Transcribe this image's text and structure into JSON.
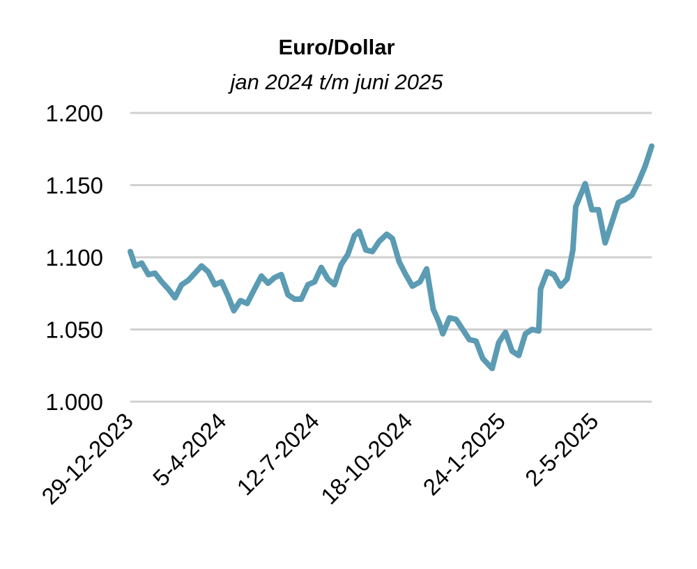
{
  "chart_data": {
    "type": "line",
    "title": "Euro/Dollar",
    "subtitle": "jan 2024 t/m juni 2025",
    "xlabel": "",
    "ylabel": "",
    "ylim": [
      1.0,
      1.2
    ],
    "yticks": [
      1.0,
      1.05,
      1.1,
      1.15,
      1.2
    ],
    "ytick_labels": [
      "1.000",
      "1.050",
      "1.100",
      "1.150",
      "1.200"
    ],
    "xlim": [
      "2023-12-29",
      "2025-06-30"
    ],
    "xticks": [
      "2023-12-29",
      "2024-04-05",
      "2024-07-12",
      "2024-10-18",
      "2025-01-24",
      "2025-05-02"
    ],
    "xtick_labels": [
      "29-12-2023",
      "5-4-2024",
      "12-7-2024",
      "18-10-2024",
      "24-1-2025",
      "2-5-2025"
    ],
    "grid": true,
    "series_color": "#5b9bb3",
    "x": [
      "2023-12-29",
      "2024-01-03",
      "2024-01-10",
      "2024-01-17",
      "2024-01-24",
      "2024-01-31",
      "2024-02-07",
      "2024-02-14",
      "2024-02-21",
      "2024-02-28",
      "2024-03-06",
      "2024-03-13",
      "2024-03-20",
      "2024-03-27",
      "2024-04-03",
      "2024-04-10",
      "2024-04-16",
      "2024-04-23",
      "2024-04-30",
      "2024-05-07",
      "2024-05-15",
      "2024-05-22",
      "2024-05-29",
      "2024-06-05",
      "2024-06-12",
      "2024-06-19",
      "2024-06-26",
      "2024-07-03",
      "2024-07-10",
      "2024-07-17",
      "2024-07-24",
      "2024-07-31",
      "2024-08-07",
      "2024-08-14",
      "2024-08-21",
      "2024-08-26",
      "2024-09-02",
      "2024-09-09",
      "2024-09-16",
      "2024-09-24",
      "2024-09-30",
      "2024-10-07",
      "2024-10-14",
      "2024-10-21",
      "2024-10-29",
      "2024-11-05",
      "2024-11-12",
      "2024-11-18",
      "2024-11-22",
      "2024-11-29",
      "2024-12-06",
      "2024-12-13",
      "2024-12-20",
      "2024-12-27",
      "2025-01-03",
      "2025-01-10",
      "2025-01-13",
      "2025-01-20",
      "2025-01-27",
      "2025-02-03",
      "2025-02-10",
      "2025-02-17",
      "2025-02-24",
      "2025-03-03",
      "2025-03-05",
      "2025-03-12",
      "2025-03-19",
      "2025-03-26",
      "2025-04-02",
      "2025-04-08",
      "2025-04-11",
      "2025-04-21",
      "2025-04-28",
      "2025-05-05",
      "2025-05-12",
      "2025-05-19",
      "2025-05-26",
      "2025-06-02",
      "2025-06-09",
      "2025-06-16",
      "2025-06-23",
      "2025-06-30"
    ],
    "values": [
      1.104,
      1.094,
      1.096,
      1.088,
      1.089,
      1.083,
      1.078,
      1.072,
      1.081,
      1.084,
      1.089,
      1.094,
      1.09,
      1.081,
      1.083,
      1.073,
      1.063,
      1.07,
      1.068,
      1.077,
      1.087,
      1.082,
      1.086,
      1.088,
      1.074,
      1.071,
      1.071,
      1.081,
      1.083,
      1.093,
      1.085,
      1.081,
      1.095,
      1.102,
      1.115,
      1.118,
      1.105,
      1.104,
      1.111,
      1.116,
      1.113,
      1.097,
      1.088,
      1.08,
      1.083,
      1.092,
      1.064,
      1.055,
      1.047,
      1.058,
      1.057,
      1.05,
      1.043,
      1.042,
      1.03,
      1.025,
      1.023,
      1.041,
      1.048,
      1.035,
      1.032,
      1.047,
      1.05,
      1.049,
      1.078,
      1.09,
      1.088,
      1.08,
      1.085,
      1.105,
      1.135,
      1.151,
      1.133,
      1.133,
      1.11,
      1.124,
      1.138,
      1.14,
      1.143,
      1.152,
      1.163,
      1.177
    ]
  }
}
